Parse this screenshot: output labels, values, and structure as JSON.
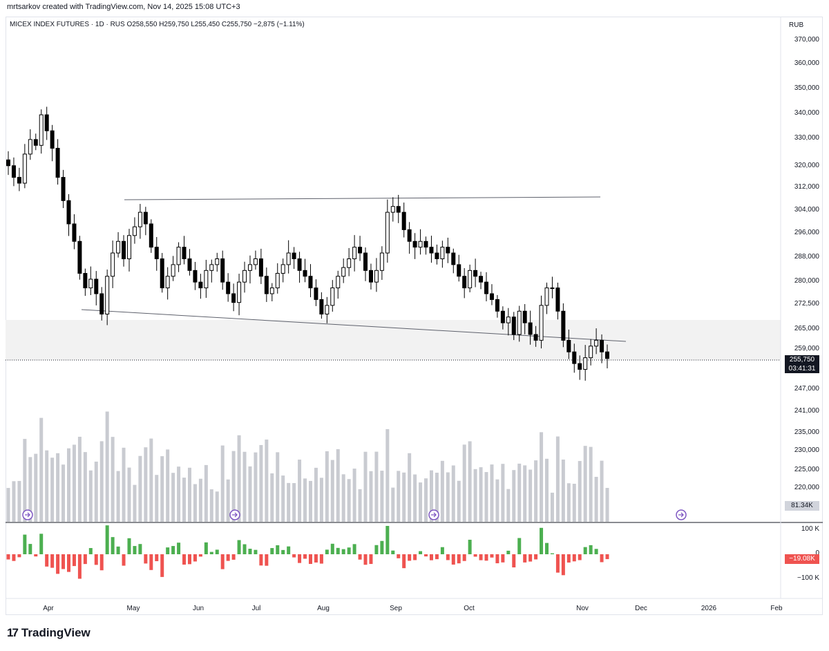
{
  "header": {
    "text": "mrtsarkov created with TradingView.com, Nov 14, 2025 15:08 UTC+3"
  },
  "legend": {
    "symbol": "MICEX INDEX FUTURES · 1D · RUS",
    "open": "O258,550",
    "high": "H259,750",
    "low": "L255,450",
    "close": "C255,750",
    "change": "−2,875 (−1.11%)"
  },
  "axis": {
    "currency": "RUB"
  },
  "price_tag": {
    "value": "255,750",
    "countdown": "03:41:31"
  },
  "volume_tag": "81.34K",
  "delta_tag": "−19.08K",
  "delta_ticks": [
    "100 K",
    "0",
    "−100 K"
  ],
  "brand": "TradingView",
  "colors": {
    "candle": "#000000",
    "volume": "#c9cbd1",
    "up": "#4caf50",
    "down": "#ef5350",
    "zone": "#f2f2f2",
    "trend": "#5d606b"
  },
  "chart_data": {
    "type": "candlestick",
    "y_ticks": [
      "370,000",
      "360,000",
      "350,000",
      "340,000",
      "330,000",
      "320,000",
      "312,000",
      "304,000",
      "296,000",
      "288,000",
      "280,000",
      "272,500",
      "265,000",
      "259,000",
      "247,000",
      "241,000",
      "235,000",
      "230,000",
      "225,000",
      "220,000"
    ],
    "x_ticks": [
      "Apr",
      "May",
      "Jun",
      "Jul",
      "Aug",
      "Sep",
      "Oct",
      "Nov",
      "Dec",
      "2026",
      "Feb"
    ],
    "close_series": [
      322000,
      318000,
      316000,
      326000,
      331000,
      329000,
      339500,
      334000,
      328000,
      318000,
      310000,
      302000,
      296000,
      285000,
      280000,
      283000,
      278000,
      271000,
      284000,
      292000,
      296000,
      290000,
      298000,
      301000,
      306000,
      302000,
      294000,
      290000,
      280000,
      284000,
      288000,
      294000,
      290000,
      286000,
      282000,
      280000,
      286000,
      288000,
      290000,
      282000,
      278000,
      275000,
      282000,
      286000,
      288000,
      290000,
      284000,
      278000,
      280000,
      285000,
      288000,
      292000,
      290000,
      286000,
      284000,
      280000,
      276000,
      271000,
      274000,
      280000,
      284000,
      287000,
      290000,
      294000,
      292000,
      286000,
      282000,
      286000,
      292000,
      306000,
      308000,
      306000,
      300000,
      296000,
      294000,
      296000,
      294000,
      292000,
      290000,
      294000,
      292000,
      288000,
      284000,
      280000,
      286000,
      284000,
      282000,
      278000,
      276000,
      272000,
      268000,
      270000,
      264000,
      272000,
      268000,
      264000,
      262000,
      274000,
      280000,
      280000,
      272000,
      262000,
      258000,
      254000,
      252000,
      256000,
      260000,
      262000,
      258000,
      255750
    ]
  }
}
